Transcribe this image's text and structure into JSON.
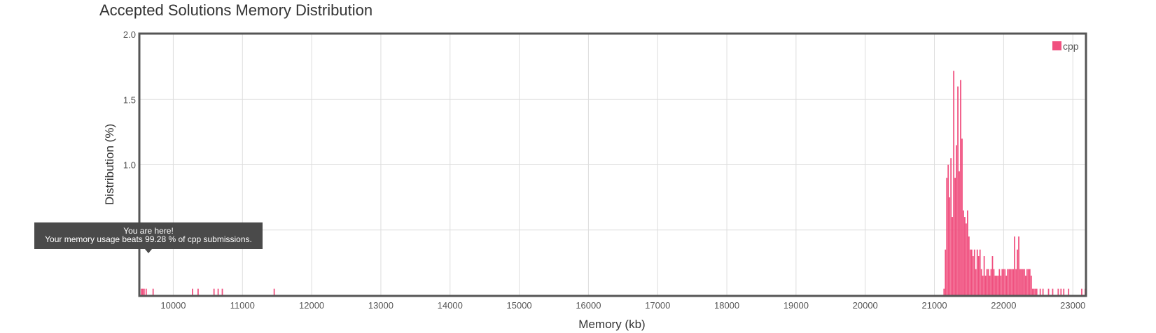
{
  "chart_data": {
    "type": "bar",
    "title": "Accepted Solutions Memory Distribution",
    "xlabel": "Memory (kb)",
    "ylabel": "Distribution (%)",
    "xlim": [
      9520,
      23180
    ],
    "ylim": [
      0,
      2.0
    ],
    "x_ticks": [
      10000,
      11000,
      12000,
      13000,
      14000,
      15000,
      16000,
      17000,
      18000,
      19000,
      20000,
      21000,
      22000,
      23000
    ],
    "y_ticks": [
      0.5,
      1.0,
      1.5,
      2.0
    ],
    "y_tick_labels": [
      "0.5",
      "1.0",
      "1.5",
      "2.0"
    ],
    "grid": true,
    "legend": "top-right",
    "bar_width_kb": 18,
    "series": [
      {
        "name": "cpp",
        "color": "#f0507f",
        "x": [
          9530,
          9550,
          9570,
          9600,
          9700,
          10270,
          10350,
          10580,
          10640,
          10700,
          11450,
          21130,
          21150,
          21170,
          21190,
          21210,
          21230,
          21250,
          21270,
          21290,
          21310,
          21330,
          21350,
          21370,
          21390,
          21410,
          21430,
          21450,
          21470,
          21490,
          21510,
          21530,
          21550,
          21570,
          21590,
          21610,
          21630,
          21650,
          21670,
          21690,
          21710,
          21730,
          21750,
          21770,
          21790,
          21810,
          21830,
          21850,
          21870,
          21890,
          21910,
          21930,
          21950,
          21970,
          21990,
          22010,
          22030,
          22050,
          22070,
          22090,
          22110,
          22130,
          22150,
          22170,
          22190,
          22210,
          22230,
          22250,
          22270,
          22290,
          22310,
          22330,
          22350,
          22370,
          22390,
          22410,
          22430,
          22450,
          22470,
          22520,
          22560,
          22640,
          22700,
          22780,
          22820,
          22860,
          22930,
          23120,
          23170
        ],
        "values": [
          0.05,
          0.05,
          0.05,
          0.05,
          0.05,
          0.05,
          0.05,
          0.05,
          0.05,
          0.05,
          0.05,
          0.05,
          0.35,
          0.9,
          1.0,
          0.75,
          1.05,
          0.6,
          1.72,
          0.9,
          1.15,
          1.6,
          0.95,
          1.65,
          1.2,
          0.65,
          0.6,
          0.55,
          0.65,
          0.45,
          0.35,
          0.35,
          0.3,
          0.35,
          0.2,
          0.35,
          0.3,
          0.35,
          0.2,
          0.15,
          0.3,
          0.15,
          0.2,
          0.2,
          0.15,
          0.2,
          0.3,
          0.2,
          0.15,
          0.15,
          0.15,
          0.2,
          0.15,
          0.2,
          0.2,
          0.2,
          0.15,
          0.2,
          0.2,
          0.2,
          0.2,
          0.2,
          0.45,
          0.2,
          0.35,
          0.45,
          0.2,
          0.2,
          0.2,
          0.2,
          0.15,
          0.2,
          0.2,
          0.2,
          0.15,
          0.05,
          0.05,
          0.05,
          0.05,
          0.05,
          0.05,
          0.05,
          0.05,
          0.05,
          0.05,
          0.05,
          0.05,
          0.05,
          0.05
        ]
      }
    ],
    "annotation": {
      "title": "You are here!",
      "text": "Your memory usage beats 99.28 % of cpp submissions."
    }
  }
}
